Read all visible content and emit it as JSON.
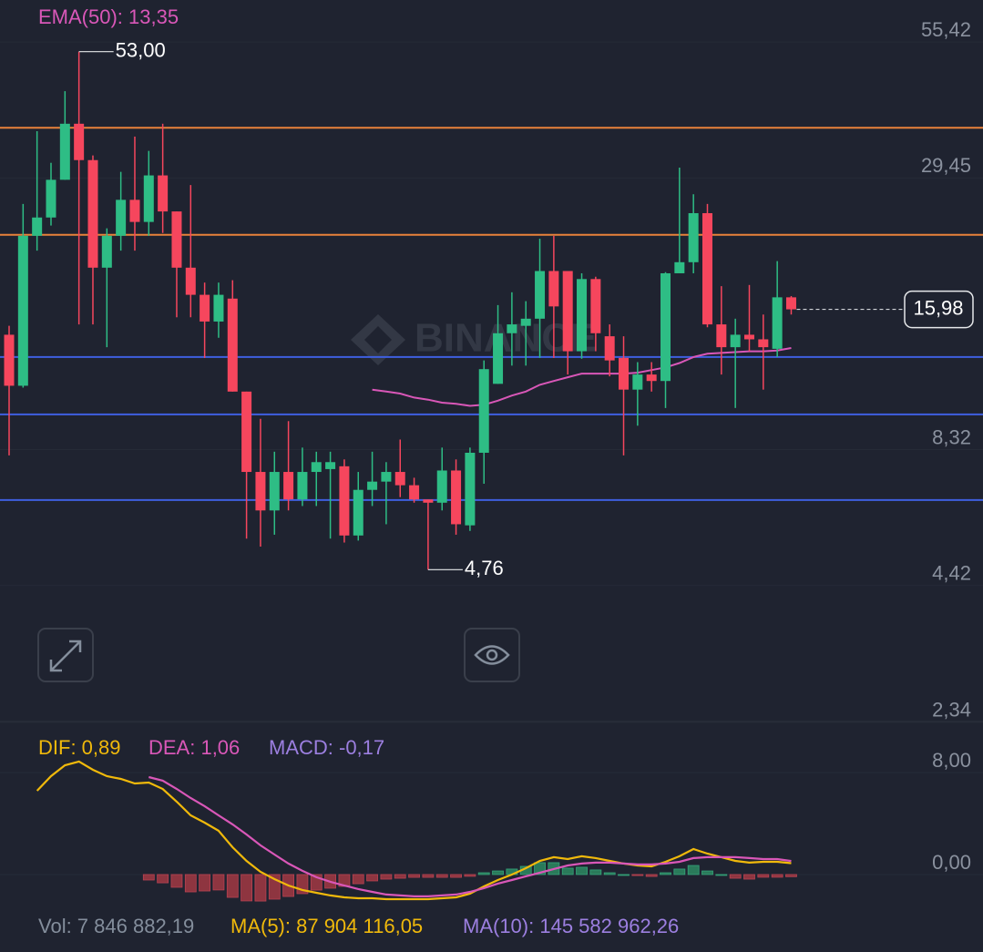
{
  "chart_data": [
    {
      "type": "candlestick",
      "watermark": "BINANCE",
      "legend_text": "EMA(50): 13,35",
      "log_scale": true,
      "ylim": [
        2.27,
        67.4
      ],
      "yticks": [
        {
          "value": 55.42,
          "label": "55,42"
        },
        {
          "value": 29.45,
          "label": "29,45"
        },
        {
          "value": 8.32,
          "label": "8,32"
        },
        {
          "value": 4.42,
          "label": "4,42"
        },
        {
          "value": 2.34,
          "label": "2,34"
        }
      ],
      "up_color": "#2ebd85",
      "down_color": "#f6465d",
      "open": [
        14.2,
        11.2,
        22.5,
        24.5,
        29.2,
        37.9,
        32.0,
        19.4,
        22.5,
        26.6,
        24.0,
        29.8,
        25.2,
        19.4,
        17.1,
        15.1,
        16.8,
        10.9,
        7.5,
        6.27,
        7.5,
        6.6,
        7.5,
        7.6,
        7.7,
        5.58,
        6.9,
        7.17,
        7.5,
        7.05,
        6.6,
        6.5,
        7.55,
        5.85,
        8.2,
        11.3,
        14.3,
        14.8,
        15.3,
        19.1,
        19.1,
        13.15,
        18.4,
        14.1,
        12.75,
        11.0,
        11.8,
        11.45,
        18.9,
        19.9,
        25.0,
        14.9,
        13.4,
        14.2,
        13.9,
        13.3,
        16.9
      ],
      "high": [
        14.8,
        26.1,
        36.6,
        31.6,
        44.1,
        53,
        32.7,
        23.3,
        30.3,
        35.7,
        33.4,
        37.9,
        25.2,
        28.5,
        18.1,
        18.1,
        18.3,
        10.9,
        9.6,
        8.24,
        9.5,
        8.4,
        8.24,
        8.24,
        7.95,
        7.5,
        8.24,
        7.85,
        8.72,
        7.3,
        6.6,
        8.4,
        7.95,
        8.4,
        12.6,
        16.3,
        17.3,
        16.6,
        22.2,
        22.5,
        19.1,
        18.9,
        18.6,
        14.9,
        14.1,
        12.5,
        12.5,
        19.0,
        30.9,
        27.3,
        26.1,
        17.8,
        15.3,
        17.9,
        15.6,
        20.0,
        17.0
      ],
      "low": [
        8.1,
        11.1,
        21.0,
        23.6,
        29.2,
        14.9,
        14.9,
        13.4,
        21.0,
        21.0,
        22.5,
        22.8,
        15.4,
        15.4,
        12.75,
        14.0,
        10.9,
        5.5,
        5.3,
        5.6,
        6.27,
        6.4,
        6.4,
        5.5,
        5.4,
        5.45,
        6.4,
        5.88,
        6.67,
        6.5,
        4.76,
        6.27,
        5.6,
        5.7,
        7.1,
        11.3,
        12.3,
        12.3,
        12.75,
        12.75,
        11.8,
        12.7,
        13.15,
        11.7,
        8.1,
        9.3,
        10.9,
        10.1,
        18.9,
        18.9,
        14.7,
        11.8,
        10.1,
        13.15,
        11.0,
        12.8,
        15.6
      ],
      "close": [
        11.2,
        22.5,
        24.5,
        29.2,
        37.9,
        32.0,
        19.4,
        22.5,
        26.6,
        24.0,
        29.8,
        25.2,
        19.4,
        17.1,
        15.1,
        17.1,
        10.9,
        7.5,
        6.27,
        7.5,
        6.6,
        7.5,
        7.85,
        7.85,
        5.58,
        6.9,
        7.17,
        7.5,
        7.05,
        6.6,
        6.5,
        7.55,
        5.88,
        8.2,
        12.1,
        14.3,
        14.9,
        15.3,
        19.1,
        16.2,
        13.15,
        18.4,
        14.3,
        12.6,
        11.0,
        11.8,
        11.45,
        18.9,
        19.9,
        25.0,
        14.9,
        13.4,
        14.2,
        13.9,
        13.4,
        16.9,
        15.98
      ],
      "series": [
        {
          "name": "EMA(50)",
          "color": "#d957b8",
          "values": [
            null,
            null,
            null,
            null,
            null,
            null,
            null,
            null,
            null,
            null,
            null,
            null,
            null,
            null,
            null,
            null,
            null,
            null,
            null,
            null,
            null,
            null,
            null,
            null,
            null,
            null,
            11.0,
            10.9,
            10.8,
            10.6,
            10.5,
            10.35,
            10.3,
            10.2,
            10.25,
            10.45,
            10.7,
            10.9,
            11.25,
            11.45,
            11.65,
            11.85,
            11.85,
            11.85,
            11.85,
            11.9,
            12.05,
            12.2,
            12.45,
            12.8,
            13.0,
            13.05,
            13.1,
            13.15,
            13.15,
            13.2,
            13.35
          ]
        }
      ],
      "hlines": [
        {
          "value": 37.2,
          "color": "#e8823a"
        },
        {
          "value": 22.6,
          "color": "#e8823a"
        },
        {
          "value": 12.8,
          "color": "#3f5fe0"
        },
        {
          "value": 9.8,
          "color": "#3f5fe0"
        },
        {
          "value": 6.58,
          "color": "#3f5fe0"
        }
      ],
      "last_price": {
        "value": 15.98,
        "label": "15,98"
      },
      "annotations": [
        {
          "value": 53,
          "label": "53,00",
          "kind": "high"
        },
        {
          "value": 4.76,
          "label": "4,76",
          "kind": "low"
        }
      ]
    },
    {
      "type": "macd",
      "ylim": [
        -2.86,
        11.07
      ],
      "yticks": [
        {
          "value": 8,
          "label": "8,00"
        },
        {
          "value": 0,
          "label": "0,00"
        }
      ],
      "series": [
        {
          "name": "DIF",
          "legend": "DIF: 0,89",
          "type": "line",
          "color": "#f0b90b",
          "values": [
            null,
            null,
            6.57,
            7.71,
            8.57,
            8.86,
            8.21,
            7.71,
            7.5,
            7.14,
            7.21,
            6.71,
            5.71,
            4.64,
            4.07,
            3.43,
            2.14,
            1.07,
            0.21,
            -0.36,
            -0.86,
            -1.21,
            -1.43,
            -1.64,
            -1.79,
            -1.86,
            -1.86,
            -1.93,
            -1.93,
            -1.93,
            -1.93,
            -1.86,
            -1.79,
            -1.5,
            -0.93,
            -0.43,
            0,
            0.5,
            1.07,
            1.36,
            1.21,
            1.43,
            1.29,
            1.07,
            0.86,
            0.71,
            0.64,
            1.0,
            1.43,
            2.0,
            1.64,
            1.36,
            1.07,
            0.93,
            1.0,
            1.0,
            0.89
          ]
        },
        {
          "name": "DEA",
          "legend": "DEA: 1,06",
          "type": "line",
          "color": "#d957b8",
          "values": [
            null,
            null,
            null,
            null,
            null,
            null,
            null,
            null,
            null,
            null,
            7.64,
            7.36,
            6.71,
            6.0,
            5.36,
            4.64,
            3.93,
            3.14,
            2.29,
            1.57,
            0.86,
            0.29,
            -0.21,
            -0.57,
            -0.86,
            -1.14,
            -1.36,
            -1.57,
            -1.64,
            -1.71,
            -1.71,
            -1.64,
            -1.57,
            -1.36,
            -1.07,
            -0.71,
            -0.43,
            -0.14,
            0.14,
            0.43,
            0.71,
            0.86,
            0.93,
            0.93,
            0.86,
            0.79,
            0.79,
            0.86,
            1.0,
            1.29,
            1.36,
            1.36,
            1.36,
            1.29,
            1.21,
            1.21,
            1.06
          ]
        },
        {
          "name": "MACD",
          "legend": "MACD: -0,17",
          "type": "bar",
          "color": "#9c7fe0",
          "up_color": "#2a7a5a",
          "down_color": "#8e3540",
          "values": [
            null,
            null,
            null,
            null,
            null,
            null,
            null,
            null,
            null,
            null,
            -0.43,
            -0.65,
            -1.0,
            -1.36,
            -1.29,
            -1.21,
            -1.79,
            -2.07,
            -2.08,
            -1.93,
            -1.72,
            -1.5,
            -1.22,
            -1.07,
            -0.93,
            -0.72,
            -0.5,
            -0.36,
            -0.29,
            -0.22,
            -0.22,
            -0.22,
            -0.22,
            -0.14,
            0.14,
            0.28,
            0.43,
            0.64,
            0.93,
            0.93,
            0.5,
            0.57,
            0.36,
            0.14,
            0,
            -0.08,
            -0.15,
            0.14,
            0.43,
            0.71,
            0.28,
            0,
            -0.29,
            -0.36,
            -0.21,
            -0.21,
            -0.17
          ]
        }
      ],
      "footer": [
        {
          "text": "Vol: 7 846 882,19",
          "color": "#848e9c"
        },
        {
          "text": "MA(5): 87 904 116,05",
          "color": "#f0b90b"
        },
        {
          "text": "MA(10): 145 582 962,26",
          "color": "#9c7fe0"
        }
      ]
    }
  ]
}
